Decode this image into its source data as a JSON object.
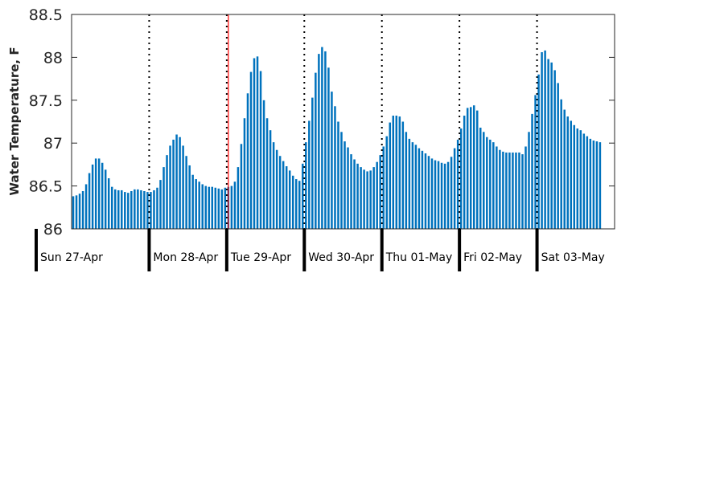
{
  "chart_data": {
    "type": "bar",
    "title": "",
    "xlabel": "",
    "ylabel": "Water Temperature, F",
    "ylim": [
      86,
      88.5
    ],
    "yticks": [
      86,
      86.5,
      87,
      87.5,
      88,
      88.5
    ],
    "ytick_labels": [
      "86",
      "86.5",
      "87",
      "87.5",
      "88",
      "88.5"
    ],
    "x_unit": "hour",
    "x_range": [
      "2014-04-27T00:00",
      "2014-05-04T00:00"
    ],
    "day_labels": [
      {
        "date": "2014-04-27",
        "label": "Sun 27-Apr"
      },
      {
        "date": "2014-04-28",
        "label": "Mon 28-Apr"
      },
      {
        "date": "2014-04-29",
        "label": "Tue 29-Apr"
      },
      {
        "date": "2014-04-30",
        "label": "Wed 30-Apr"
      },
      {
        "date": "2014-05-01",
        "label": "Thu 01-May"
      },
      {
        "date": "2014-05-02",
        "label": "Fri 02-May"
      },
      {
        "date": "2014-05-03",
        "label": "Sat 03-May"
      }
    ],
    "current_time_marker": "2014-04-29T00:00",
    "grid": false,
    "colors": {
      "bars": "#0072BD",
      "marker": "#FF0000",
      "day_divider": "#000000",
      "axis_text": "#262626"
    },
    "series": [
      {
        "values": [
          86.38,
          86.39,
          86.41,
          86.44,
          86.52,
          86.65,
          86.75,
          86.82,
          86.82,
          86.77,
          86.69,
          86.59,
          86.49,
          86.46,
          86.45,
          86.45,
          86.43,
          86.42,
          86.44,
          86.46,
          86.46,
          86.45,
          86.44,
          86.43,
          86.43,
          86.45,
          86.48,
          86.57,
          86.72,
          86.86,
          86.97,
          87.04,
          87.1,
          87.07,
          86.97,
          86.85,
          86.74,
          86.63,
          86.58,
          86.55,
          86.52,
          86.5,
          86.49,
          86.49,
          86.48,
          86.47,
          86.46,
          86.48,
          86.49,
          86.5,
          86.55,
          86.72,
          86.99,
          87.29,
          87.58,
          87.83,
          87.99,
          88.01,
          87.84,
          87.5,
          87.29,
          87.15,
          87.01,
          86.92,
          86.85,
          86.79,
          86.73,
          86.68,
          86.62,
          86.58,
          86.56,
          86.76,
          87.01,
          87.26,
          87.53,
          87.82,
          88.04,
          88.12,
          88.07,
          87.88,
          87.6,
          87.43,
          87.25,
          87.13,
          87.02,
          86.95,
          86.87,
          86.81,
          86.76,
          86.72,
          86.69,
          86.67,
          86.68,
          86.72,
          86.78,
          86.86,
          86.96,
          87.08,
          87.24,
          87.32,
          87.32,
          87.31,
          87.25,
          87.13,
          87.05,
          87.01,
          86.98,
          86.94,
          86.91,
          86.88,
          86.85,
          86.82,
          86.8,
          86.79,
          86.77,
          86.76,
          86.78,
          86.84,
          86.94,
          87.04,
          87.17,
          87.32,
          87.41,
          87.42,
          87.44,
          87.38,
          87.18,
          87.13,
          87.07,
          87.04,
          87.01,
          86.96,
          86.92,
          86.9,
          86.89,
          86.89,
          86.89,
          86.89,
          86.89,
          86.87,
          86.96,
          87.13,
          87.34,
          87.56,
          87.8,
          88.06,
          88.08,
          87.98,
          87.94,
          87.85,
          87.7,
          87.51,
          87.39,
          87.31,
          87.26,
          87.21,
          87.17,
          87.15,
          87.11,
          87.08,
          87.05,
          87.03,
          87.02,
          87.01
        ]
      }
    ]
  }
}
